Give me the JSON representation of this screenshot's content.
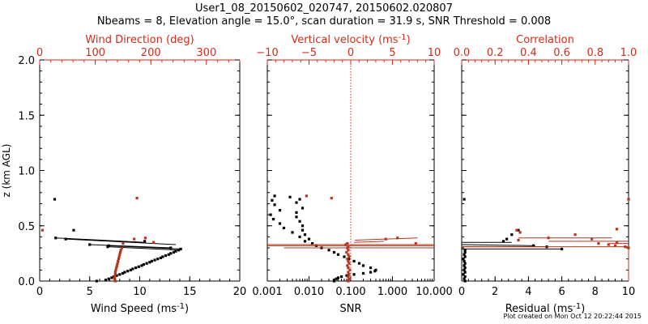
{
  "title_line1": "User1_08_20150602_020747, 20150602.020807",
  "title_line2": "Nbeams = 8, Elevation angle = 15.0°, scan duration = 31.9 s, SNR Threshold = 0.008",
  "credit": "Plot created on Mon Oct 12 20:22:44 2015",
  "colors": {
    "black_series": "#000000",
    "red_series": "#b5361d",
    "red_axis": "#d42a1a"
  },
  "chart_data": [
    {
      "type": "scatter",
      "panel": "wind",
      "ylabel": "z (km AGL)",
      "ylim": [
        0,
        2.0
      ],
      "yticks": [
        "0.0",
        "0.5",
        "1.0",
        "1.5",
        "2.0"
      ],
      "ytick_values": [
        0,
        0.5,
        1.0,
        1.5,
        2.0
      ],
      "xlabel": "Wind Speed (ms",
      "xlabel_sup": "-1",
      "xlabel_end": ")",
      "xlim": [
        0,
        20
      ],
      "xticks": [
        "0",
        "5",
        "10",
        "15",
        "20"
      ],
      "xtick_values": [
        0,
        5,
        10,
        15,
        20
      ],
      "top_label": "Wind Direction (deg)",
      "top_xlim": [
        0,
        360
      ],
      "top_ticks": [
        "0",
        "100",
        "200",
        "300"
      ],
      "top_tick_values": [
        0,
        100,
        200,
        300
      ],
      "series": [
        {
          "color": "black",
          "axis": "bottom",
          "points": [
            [
              1.5,
              0.74
            ],
            [
              3.4,
              0.46
            ],
            [
              1.6,
              0.39
            ],
            [
              2.6,
              0.38
            ],
            [
              10.5,
              0.36
            ],
            [
              5.0,
              0.33
            ],
            [
              6.9,
              0.32
            ],
            [
              6.8,
              0.31
            ],
            [
              13.1,
              0.3
            ],
            [
              14.1,
              0.29
            ],
            [
              13.9,
              0.28
            ],
            [
              13.6,
              0.27
            ],
            [
              13.4,
              0.26
            ],
            [
              13.1,
              0.25
            ],
            [
              12.9,
              0.24
            ],
            [
              12.6,
              0.23
            ],
            [
              12.3,
              0.22
            ],
            [
              12.1,
              0.21
            ],
            [
              11.8,
              0.2
            ],
            [
              11.5,
              0.19
            ],
            [
              11.2,
              0.18
            ],
            [
              11.0,
              0.17
            ],
            [
              10.7,
              0.16
            ],
            [
              10.4,
              0.15
            ],
            [
              10.2,
              0.14
            ],
            [
              9.9,
              0.13
            ],
            [
              9.6,
              0.12
            ],
            [
              9.3,
              0.11
            ],
            [
              9.1,
              0.1
            ],
            [
              8.8,
              0.09
            ],
            [
              8.5,
              0.08
            ],
            [
              8.3,
              0.07
            ],
            [
              8.0,
              0.06
            ],
            [
              7.7,
              0.05
            ],
            [
              7.4,
              0.04
            ],
            [
              7.2,
              0.03
            ],
            [
              6.9,
              0.02
            ],
            [
              6.6,
              0.01
            ],
            [
              5.7,
              0.0
            ]
          ],
          "segments": [
            [
              [
                1.6,
                0.39
              ],
              [
                10.6,
                0.35
              ]
            ],
            [
              [
                2.6,
                0.38
              ],
              [
                13.6,
                0.33
              ]
            ],
            [
              [
                5.0,
                0.33
              ],
              [
                13.1,
                0.3
              ]
            ],
            [
              [
                6.9,
                0.32
              ],
              [
                14.1,
                0.29
              ]
            ],
            [
              [
                6.8,
                0.31
              ],
              [
                13.9,
                0.28
              ]
            ]
          ]
        },
        {
          "color": "red",
          "axis": "top",
          "points": [
            [
              5,
              0.46
            ],
            [
              175,
              0.75
            ],
            [
              170,
              0.38
            ],
            [
              190,
              0.39
            ],
            [
              205,
              0.35
            ],
            [
              150,
              0.34
            ],
            [
              148,
              0.3
            ],
            [
              146,
              0.28
            ],
            [
              145,
              0.26
            ],
            [
              144,
              0.24
            ],
            [
              143,
              0.22
            ],
            [
              142,
              0.2
            ],
            [
              141,
              0.18
            ],
            [
              140,
              0.16
            ],
            [
              139,
              0.14
            ],
            [
              138,
              0.12
            ],
            [
              137,
              0.1
            ],
            [
              136,
              0.08
            ],
            [
              136,
              0.06
            ],
            [
              135,
              0.04
            ],
            [
              135,
              0.02
            ],
            [
              136,
              0.0
            ]
          ]
        }
      ]
    },
    {
      "type": "scatter",
      "panel": "snr",
      "ylim": [
        0,
        2.0
      ],
      "xlabel": "SNR",
      "xscale": "log",
      "xlim": [
        0.001,
        10.0
      ],
      "xticks": [
        "0.001",
        "0.010",
        "0.100",
        "1.000",
        "10.000"
      ],
      "xtick_values": [
        0.001,
        0.01,
        0.1,
        1.0,
        10.0
      ],
      "top_label": "Vertical velocity (ms",
      "top_label_sup": "-1",
      "top_label_end": ")",
      "top_xlim": [
        -10,
        10
      ],
      "top_ticks": [
        "−10",
        "−5",
        "0",
        "5",
        "10"
      ],
      "top_tick_values": [
        -10,
        -5,
        0,
        5,
        10
      ],
      "threshold_snr": 0.1,
      "series": [
        {
          "color": "black",
          "axis": "bottom",
          "points": [
            [
              0.0015,
              0.77
            ],
            [
              0.0035,
              0.76
            ],
            [
              0.006,
              0.74
            ],
            [
              0.0013,
              0.73
            ],
            [
              0.005,
              0.71
            ],
            [
              0.0015,
              0.69
            ],
            [
              0.007,
              0.66
            ],
            [
              0.002,
              0.64
            ],
            [
              0.005,
              0.62
            ],
            [
              0.0012,
              0.6
            ],
            [
              0.005,
              0.58
            ],
            [
              0.0014,
              0.56
            ],
            [
              0.006,
              0.54
            ],
            [
              0.002,
              0.52
            ],
            [
              0.007,
              0.5
            ],
            [
              0.0025,
              0.48
            ],
            [
              0.007,
              0.46
            ],
            [
              0.004,
              0.44
            ],
            [
              0.008,
              0.42
            ],
            [
              0.006,
              0.4
            ],
            [
              0.01,
              0.38
            ],
            [
              0.008,
              0.36
            ],
            [
              0.012,
              0.34
            ],
            [
              0.015,
              0.32
            ],
            [
              0.02,
              0.3
            ],
            [
              0.03,
              0.28
            ],
            [
              0.04,
              0.26
            ],
            [
              0.05,
              0.24
            ],
            [
              0.07,
              0.22
            ],
            [
              0.09,
              0.2
            ],
            [
              0.12,
              0.18
            ],
            [
              0.16,
              0.16
            ],
            [
              0.2,
              0.14
            ],
            [
              0.3,
              0.12
            ],
            [
              0.4,
              0.1
            ],
            [
              0.38,
              0.09
            ],
            [
              0.3,
              0.08
            ],
            [
              0.2,
              0.07
            ],
            [
              0.12,
              0.06
            ],
            [
              0.08,
              0.05
            ],
            [
              0.06,
              0.04
            ],
            [
              0.05,
              0.03
            ],
            [
              0.045,
              0.02
            ],
            [
              0.04,
              0.01
            ],
            [
              0.04,
              0.0
            ]
          ]
        },
        {
          "color": "red",
          "axis": "top",
          "points": [
            [
              -5.3,
              0.77
            ],
            [
              -2.3,
              0.75
            ],
            [
              -0.4,
              0.34
            ],
            [
              -0.6,
              0.33
            ],
            [
              -0.3,
              0.31
            ],
            [
              -0.4,
              0.3
            ],
            [
              -0.3,
              0.28
            ],
            [
              -0.5,
              0.26
            ],
            [
              -0.3,
              0.24
            ],
            [
              -0.2,
              0.22
            ],
            [
              -0.4,
              0.2
            ],
            [
              -0.3,
              0.18
            ],
            [
              -0.2,
              0.16
            ],
            [
              -0.4,
              0.14
            ],
            [
              -0.3,
              0.12
            ],
            [
              -0.1,
              0.1
            ],
            [
              -0.3,
              0.08
            ],
            [
              -0.2,
              0.06
            ],
            [
              -0.3,
              0.04
            ],
            [
              -0.2,
              0.02
            ],
            [
              -0.3,
              0.0
            ],
            [
              4.2,
              0.38
            ],
            [
              5.6,
              0.39
            ],
            [
              7.8,
              0.34
            ]
          ],
          "segments": [
            [
              [
                0.5,
                0.37
              ],
              [
                8.0,
                0.39
              ]
            ],
            [
              [
                0.4,
                0.35
              ],
              [
                4.0,
                0.36
              ]
            ],
            [
              [
                -10.0,
                0.33
              ],
              [
                10.0,
                0.33
              ]
            ],
            [
              [
                -10.0,
                0.32
              ],
              [
                10.0,
                0.32
              ]
            ],
            [
              [
                -8.0,
                0.3
              ],
              [
                10.0,
                0.3
              ]
            ]
          ]
        }
      ]
    },
    {
      "type": "scatter",
      "panel": "residual",
      "ylim": [
        0,
        2.0
      ],
      "xlabel": "Residual (ms",
      "xlabel_sup": "-1",
      "xlabel_end": ")",
      "xlim": [
        0,
        10
      ],
      "xticks": [
        "0",
        "2",
        "4",
        "6",
        "8",
        "10"
      ],
      "xtick_values": [
        0,
        2,
        4,
        6,
        8,
        10
      ],
      "top_label": "Correlation",
      "top_xlim": [
        0.0,
        1.0
      ],
      "top_ticks": [
        "0.0",
        "0.2",
        "0.4",
        "0.6",
        "0.8",
        "1.0"
      ],
      "top_tick_values": [
        0.0,
        0.2,
        0.4,
        0.6,
        0.8,
        1.0
      ],
      "series": [
        {
          "color": "black",
          "axis": "bottom",
          "points": [
            [
              0.15,
              0.74
            ],
            [
              3.4,
              0.46
            ],
            [
              3.0,
              0.42
            ],
            [
              2.7,
              0.38
            ],
            [
              2.5,
              0.36
            ],
            [
              4.3,
              0.32
            ],
            [
              5.1,
              0.31
            ],
            [
              6.0,
              0.29
            ],
            [
              0.2,
              0.28
            ],
            [
              0.2,
              0.26
            ],
            [
              0.15,
              0.24
            ],
            [
              0.2,
              0.22
            ],
            [
              0.1,
              0.2
            ],
            [
              0.15,
              0.18
            ],
            [
              0.2,
              0.16
            ],
            [
              0.15,
              0.14
            ],
            [
              0.2,
              0.12
            ],
            [
              0.15,
              0.1
            ],
            [
              0.2,
              0.08
            ],
            [
              0.1,
              0.06
            ],
            [
              0.2,
              0.04
            ],
            [
              0.15,
              0.02
            ],
            [
              0.2,
              0.0
            ]
          ],
          "segments": [
            [
              [
                0.0,
                0.35
              ],
              [
                3.0,
                0.35
              ]
            ],
            [
              [
                0.0,
                0.33
              ],
              [
                4.4,
                0.32
              ]
            ],
            [
              [
                0.0,
                0.31
              ],
              [
                5.2,
                0.31
              ]
            ],
            [
              [
                0.0,
                0.29
              ],
              [
                6.0,
                0.29
              ]
            ]
          ]
        },
        {
          "color": "red",
          "axis": "top",
          "points": [
            [
              1.0,
              0.74
            ],
            [
              0.33,
              0.46
            ],
            [
              0.35,
              0.44
            ],
            [
              0.93,
              0.47
            ],
            [
              0.68,
              0.42
            ],
            [
              0.78,
              0.38
            ],
            [
              0.82,
              0.34
            ],
            [
              0.88,
              0.33
            ],
            [
              0.92,
              0.32
            ],
            [
              0.98,
              0.31
            ],
            [
              1.0,
              0.3
            ],
            [
              0.93,
              0.35
            ],
            [
              0.52,
              0.39
            ],
            [
              0.34,
              0.37
            ]
          ],
          "segments": [
            [
              [
                0.34,
                0.39
              ],
              [
                0.9,
                0.39
              ]
            ],
            [
              [
                0.52,
                0.36
              ],
              [
                1.0,
                0.36
              ]
            ],
            [
              [
                0.88,
                0.34
              ],
              [
                1.0,
                0.34
              ]
            ],
            [
              [
                0.0,
                0.31
              ],
              [
                1.0,
                0.31
              ]
            ],
            [
              [
                1.0,
                0.3
              ],
              [
                1.0,
                0.0
              ]
            ]
          ]
        }
      ]
    }
  ]
}
